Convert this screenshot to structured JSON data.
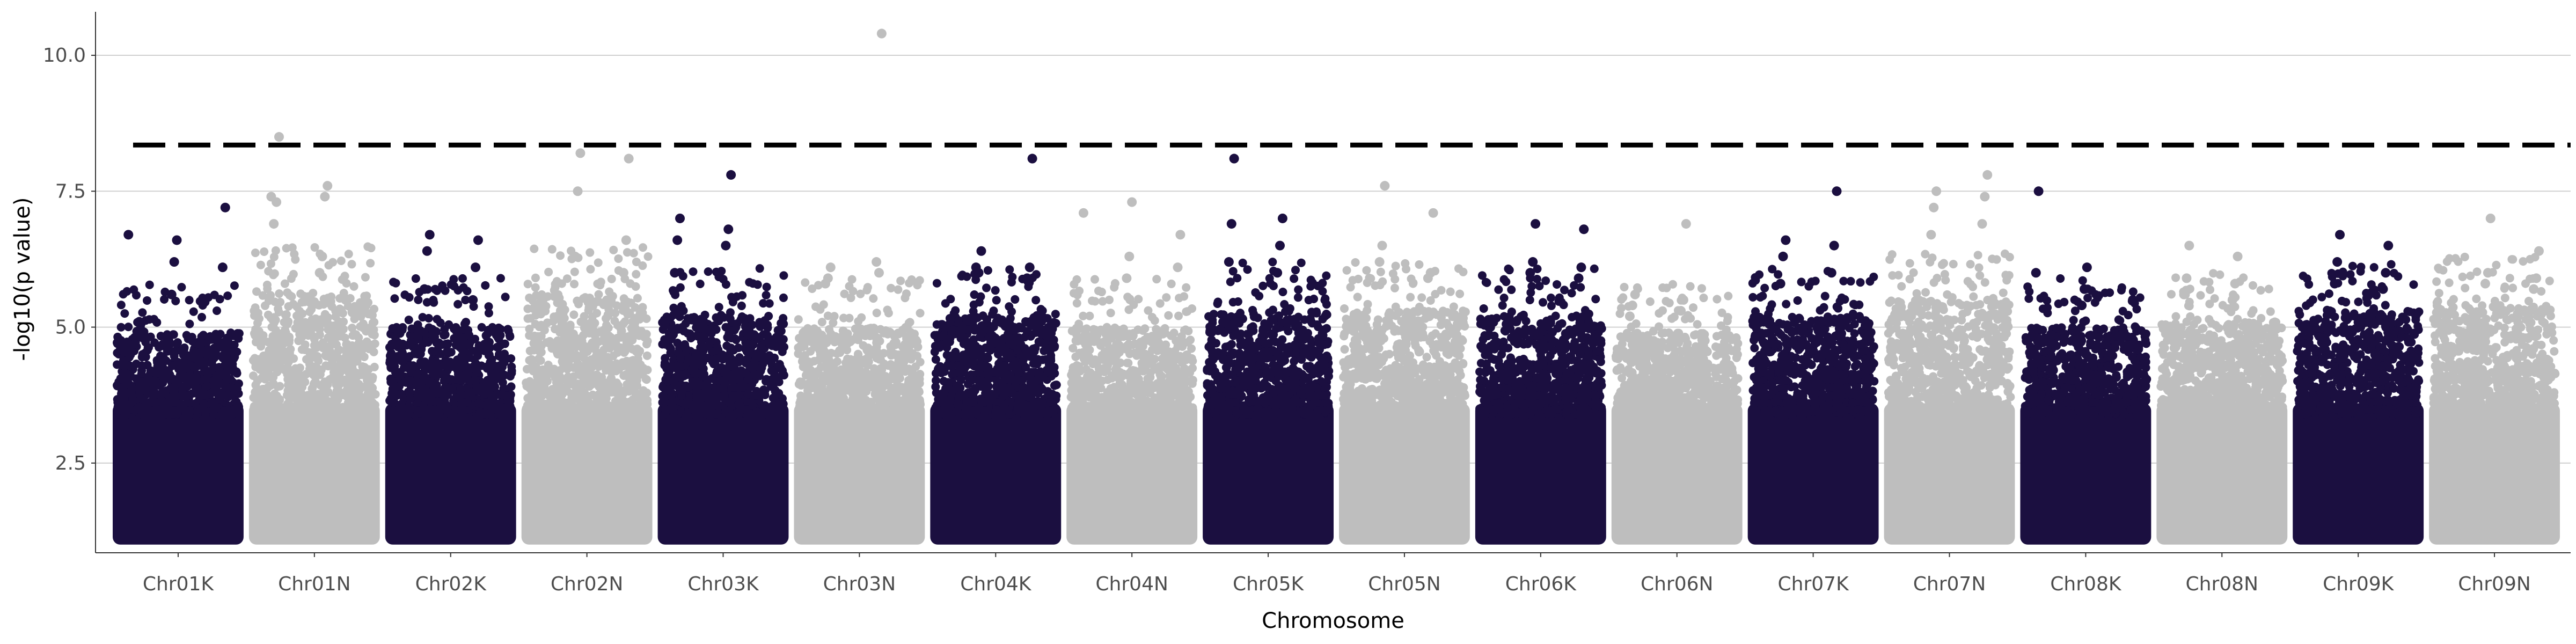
{
  "chart_data": {
    "type": "scatter",
    "title": "",
    "xlabel": "Chromosome",
    "ylabel": "-log10(p value)",
    "ylim": [
      0.85,
      10.8
    ],
    "y_ticks": [
      "2.5",
      "5.0",
      "7.5",
      "10.0"
    ],
    "y_tick_values": [
      2.5,
      5.0,
      7.5,
      10.0
    ],
    "grid": "horizontal",
    "legend": "none",
    "threshold": 8.35,
    "colors": {
      "dark": "#1b0f40",
      "light": "#bebebe",
      "grid": "#d0d0d0",
      "axis": "#333333"
    },
    "categories": [
      "Chr01K",
      "Chr01N",
      "Chr02K",
      "Chr02N",
      "Chr03K",
      "Chr03N",
      "Chr04K",
      "Chr04N",
      "Chr05K",
      "Chr05N",
      "Chr06K",
      "Chr06N",
      "Chr07K",
      "Chr07N",
      "Chr08K",
      "Chr08N",
      "Chr09K",
      "Chr09N"
    ],
    "series": [
      {
        "chromosome": "Chr01K",
        "color": "dark",
        "bulk_top": 4.9,
        "peaks": [
          6.7,
          6.6,
          7.2,
          6.2,
          6.1,
          5.6
        ]
      },
      {
        "chromosome": "Chr01N",
        "color": "light",
        "bulk_top": 5.6,
        "peaks": [
          8.5,
          7.6,
          7.3,
          7.4,
          6.9,
          6.3,
          7.4,
          6.0
        ]
      },
      {
        "chromosome": "Chr02K",
        "color": "dark",
        "bulk_top": 5.0,
        "peaks": [
          6.7,
          6.6,
          6.4,
          6.1,
          5.7,
          5.5
        ]
      },
      {
        "chromosome": "Chr02N",
        "color": "light",
        "bulk_top": 5.6,
        "peaks": [
          8.2,
          8.1,
          7.5,
          6.6,
          6.3,
          6.0
        ]
      },
      {
        "chromosome": "Chr03K",
        "color": "dark",
        "bulk_top": 5.2,
        "peaks": [
          7.8,
          7.0,
          6.8,
          6.6,
          6.5,
          6.0
        ]
      },
      {
        "chromosome": "Chr03N",
        "color": "light",
        "bulk_top": 5.0,
        "peaks": [
          10.4,
          6.1,
          6.0,
          5.9,
          6.2,
          5.8
        ]
      },
      {
        "chromosome": "Chr04K",
        "color": "dark",
        "bulk_top": 5.2,
        "peaks": [
          8.1,
          6.4,
          6.1,
          6.0,
          5.9,
          6.1
        ]
      },
      {
        "chromosome": "Chr04N",
        "color": "light",
        "bulk_top": 5.0,
        "peaks": [
          7.1,
          7.3,
          6.7,
          6.3,
          6.1,
          5.9
        ]
      },
      {
        "chromosome": "Chr05K",
        "color": "dark",
        "bulk_top": 5.3,
        "peaks": [
          8.1,
          7.0,
          6.9,
          6.5,
          6.2,
          6.0
        ]
      },
      {
        "chromosome": "Chr05N",
        "color": "light",
        "bulk_top": 5.3,
        "peaks": [
          7.6,
          7.1,
          6.5,
          6.0,
          6.2,
          5.9
        ]
      },
      {
        "chromosome": "Chr06K",
        "color": "dark",
        "bulk_top": 5.2,
        "peaks": [
          6.9,
          6.8,
          6.2,
          6.1,
          6.0,
          5.9
        ]
      },
      {
        "chromosome": "Chr06N",
        "color": "light",
        "bulk_top": 4.9,
        "peaks": [
          6.9,
          5.6,
          5.5,
          5.4,
          5.3,
          5.2
        ]
      },
      {
        "chromosome": "Chr07K",
        "color": "dark",
        "bulk_top": 5.2,
        "peaks": [
          7.5,
          6.6,
          6.5,
          6.3,
          6.0,
          5.8
        ]
      },
      {
        "chromosome": "Chr07N",
        "color": "light",
        "bulk_top": 5.5,
        "peaks": [
          7.8,
          7.5,
          7.4,
          7.2,
          6.9,
          6.7
        ]
      },
      {
        "chromosome": "Chr08K",
        "color": "dark",
        "bulk_top": 5.0,
        "peaks": [
          7.5,
          6.1,
          6.0,
          5.7,
          5.5,
          5.4
        ]
      },
      {
        "chromosome": "Chr08N",
        "color": "light",
        "bulk_top": 5.1,
        "peaks": [
          6.5,
          6.3,
          5.9,
          5.8,
          5.6,
          5.5
        ]
      },
      {
        "chromosome": "Chr09K",
        "color": "dark",
        "bulk_top": 5.3,
        "peaks": [
          6.7,
          6.5,
          6.2,
          6.0,
          5.8,
          5.7
        ]
      },
      {
        "chromosome": "Chr09N",
        "color": "light",
        "bulk_top": 5.4,
        "peaks": [
          7.0,
          6.4,
          6.0,
          5.9,
          5.8,
          5.7
        ]
      }
    ]
  }
}
